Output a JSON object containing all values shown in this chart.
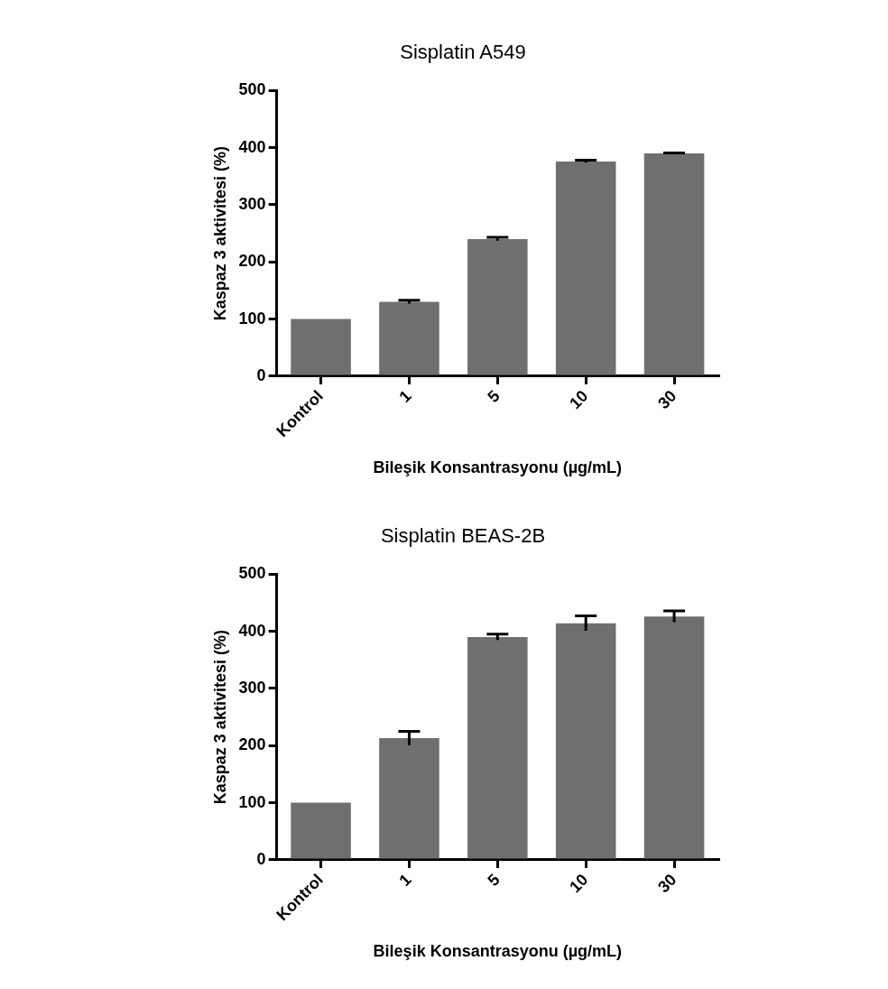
{
  "chart_data": [
    {
      "type": "bar",
      "title": "Sisplatin A549",
      "xlabel": "Bileşik Konsantrasyonu (µg/mL)",
      "ylabel": "Kaspaz 3 aktivitesi (%)",
      "categories": [
        "Kontrol",
        "1",
        "5",
        "10",
        "30"
      ],
      "values": [
        100,
        130,
        240,
        376,
        390
      ],
      "errors": [
        null,
        3,
        3,
        2,
        1
      ],
      "color": "#6f6f6f",
      "ylim": [
        0,
        500
      ],
      "yticks": [
        0,
        100,
        200,
        300,
        400,
        500
      ],
      "grid": false,
      "legend": false
    },
    {
      "type": "bar",
      "title": "Sisplatin BEAS-2B",
      "xlabel": "Bileşik Konsantrasyonu (µg/mL)",
      "ylabel": "Kaspaz 3 aktivitesi (%)",
      "categories": [
        "Kontrol",
        "1",
        "5",
        "10",
        "30"
      ],
      "values": [
        100,
        213,
        390,
        414,
        426
      ],
      "errors": [
        null,
        12,
        5,
        13,
        10
      ],
      "color": "#6f6f6f",
      "ylim": [
        0,
        500
      ],
      "yticks": [
        0,
        100,
        200,
        300,
        400,
        500
      ],
      "grid": false,
      "legend": false
    }
  ]
}
